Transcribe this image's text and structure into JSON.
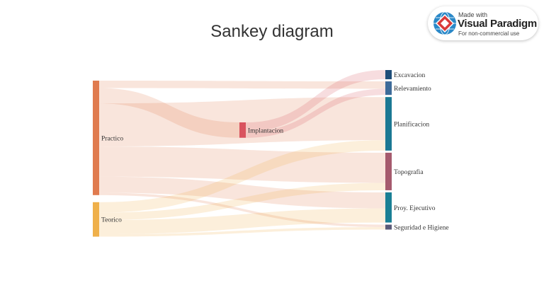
{
  "title": "Sankey diagram",
  "badge": {
    "made_with": "Made with",
    "brand": "Visual Paradigm",
    "note": "For non-commercial use"
  },
  "chart_data": {
    "type": "sankey",
    "nodes": [
      {
        "id": "practico",
        "label": "Practico",
        "color": "#e07b4f",
        "column": 0
      },
      {
        "id": "teorico",
        "label": "Teorico",
        "color": "#efb04a",
        "column": 0
      },
      {
        "id": "implantacion",
        "label": "Implantacion",
        "color": "#d9535f",
        "column": 1
      },
      {
        "id": "excavacion",
        "label": "Excavacion",
        "color": "#1f4e79",
        "column": 2
      },
      {
        "id": "relevamiento",
        "label": "Relevamiento",
        "color": "#3d6b99",
        "column": 2
      },
      {
        "id": "planificacion",
        "label": "Planificacion",
        "color": "#1b7893",
        "column": 2
      },
      {
        "id": "topografia",
        "label": "Topografia",
        "color": "#a55a6e",
        "column": 2
      },
      {
        "id": "proy_ejecutivo",
        "label": "Proy. Ejecutivo",
        "color": "#1a7f95",
        "column": 2
      },
      {
        "id": "seguridad",
        "label": "Seguridad e Higiene",
        "color": "#5a5a78",
        "column": 2
      }
    ],
    "links": [
      {
        "source": "practico",
        "target": "relevamiento",
        "value": 12
      },
      {
        "source": "practico",
        "target": "implantacion",
        "value": 25
      },
      {
        "source": "practico",
        "target": "planificacion",
        "value": 70
      },
      {
        "source": "practico",
        "target": "topografia",
        "value": 49
      },
      {
        "source": "practico",
        "target": "proy_ejecutivo",
        "value": 26
      },
      {
        "source": "practico",
        "target": "seguridad",
        "value": 4
      },
      {
        "source": "teorico",
        "target": "planificacion",
        "value": 17
      },
      {
        "source": "teorico",
        "target": "topografia",
        "value": 12
      },
      {
        "source": "teorico",
        "target": "proy_ejecutivo",
        "value": 23
      },
      {
        "source": "teorico",
        "target": "seguridad",
        "value": 4
      },
      {
        "source": "implantacion",
        "target": "excavacion",
        "value": 15
      },
      {
        "source": "implantacion",
        "target": "relevamiento",
        "value": 10
      }
    ]
  }
}
